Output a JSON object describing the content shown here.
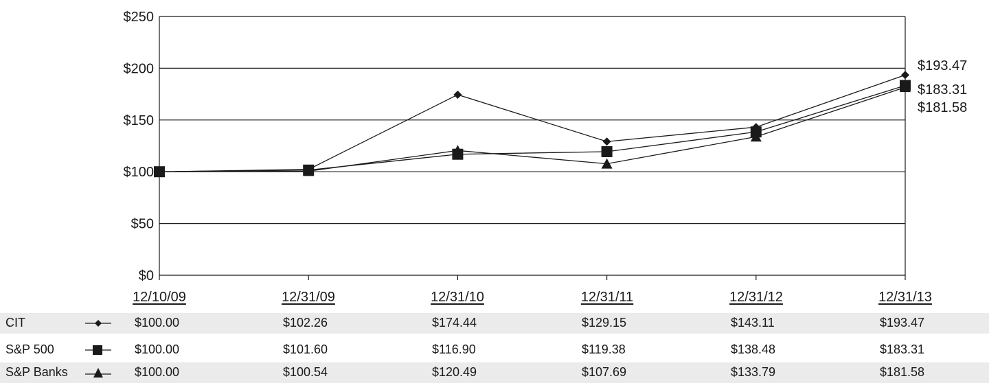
{
  "chart_data": {
    "type": "line",
    "x": [
      "12/10/09",
      "12/31/09",
      "12/31/10",
      "12/31/11",
      "12/31/12",
      "12/31/13"
    ],
    "ylim": [
      0,
      250
    ],
    "yticks": [
      "$0",
      "$50",
      "$100",
      "$150",
      "$200",
      "$250"
    ],
    "grid": true,
    "series": [
      {
        "name": "CIT",
        "marker": "diamond",
        "values": [
          100.0,
          102.26,
          174.44,
          129.15,
          143.11,
          193.47
        ],
        "labels": [
          "$100.00",
          "$102.26",
          "$174.44",
          "$129.15",
          "$143.11",
          "$193.47"
        ]
      },
      {
        "name": "S&P 500",
        "marker": "square",
        "values": [
          100.0,
          101.6,
          116.9,
          119.38,
          138.48,
          183.31
        ],
        "labels": [
          "$100.00",
          "$101.60",
          "$116.90",
          "$119.38",
          "$138.48",
          "$183.31"
        ]
      },
      {
        "name": "S&P Banks",
        "marker": "triangle",
        "values": [
          100.0,
          100.54,
          120.49,
          107.69,
          133.79,
          181.58
        ],
        "labels": [
          "$100.00",
          "$100.54",
          "$120.49",
          "$107.69",
          "$133.79",
          "$181.58"
        ]
      }
    ],
    "end_labels": [
      "$193.47",
      "$183.31",
      "$181.58"
    ]
  },
  "colors": {
    "line": "#1a1a1a",
    "row_shade": "#ebebeb"
  }
}
